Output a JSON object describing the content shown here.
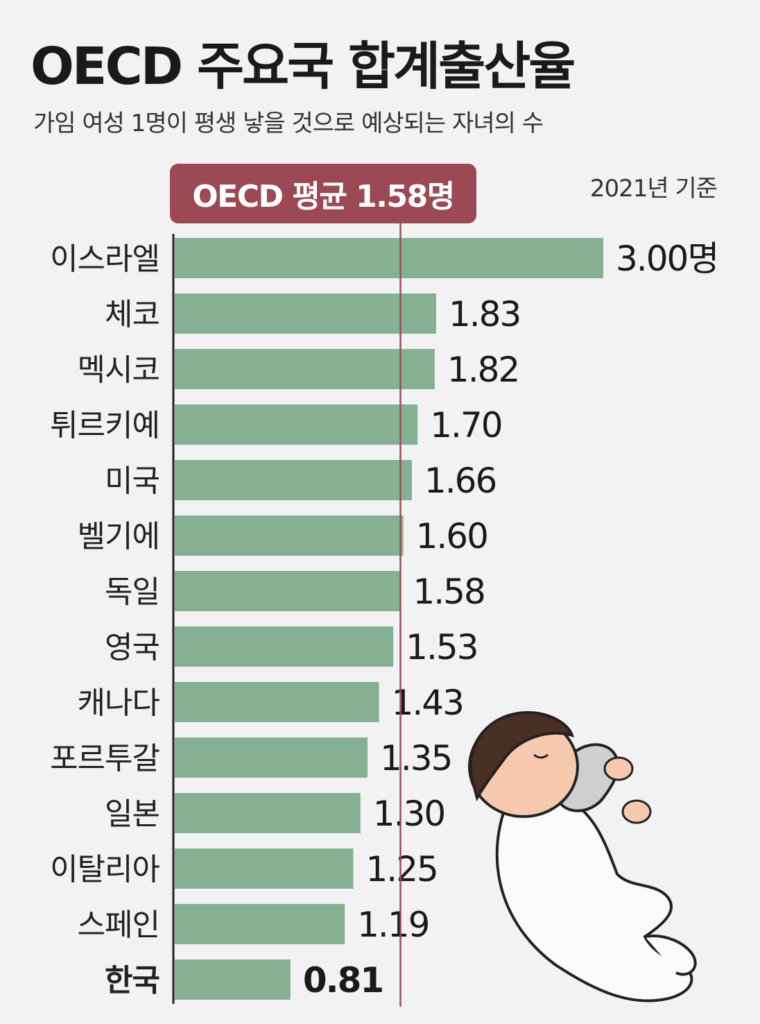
{
  "title": "OECD 주요국 합계출산율",
  "subtitle": "가임 여성 1명이 평생 낳을 것으로 예상되는 자녀의 수",
  "basis_note": "2021년 기준",
  "average_badge": "OECD 평균 1.58명",
  "colors": {
    "bar": "#86b093",
    "average_line": "#9b4a55",
    "badge": "#9b4a55",
    "background": "#f2f2f2"
  },
  "chart_data": {
    "type": "bar",
    "orientation": "horizontal",
    "title": "OECD 주요국 합계출산율",
    "subtitle": "가임 여성 1명이 평생 낳을 것으로 예상되는 자녀의 수",
    "categories": [
      "이스라엘",
      "체코",
      "멕시코",
      "튀르키예",
      "미국",
      "벨기에",
      "독일",
      "영국",
      "캐나다",
      "포르투갈",
      "일본",
      "이탈리아",
      "스페인",
      "한국"
    ],
    "values": [
      3.0,
      1.83,
      1.82,
      1.7,
      1.66,
      1.6,
      1.58,
      1.53,
      1.43,
      1.35,
      1.3,
      1.25,
      1.19,
      0.81
    ],
    "value_labels": [
      "3.00명",
      "1.83",
      "1.82",
      "1.70",
      "1.66",
      "1.60",
      "1.58",
      "1.53",
      "1.43",
      "1.35",
      "1.30",
      "1.25",
      "1.19",
      "0.81"
    ],
    "highlight": "한국",
    "reference_line": {
      "value": 1.58,
      "label": "OECD 평균 1.58명"
    },
    "xlim": [
      0,
      3.0
    ],
    "grid": false,
    "legend": "none"
  },
  "illustration": "sleeping-baby"
}
